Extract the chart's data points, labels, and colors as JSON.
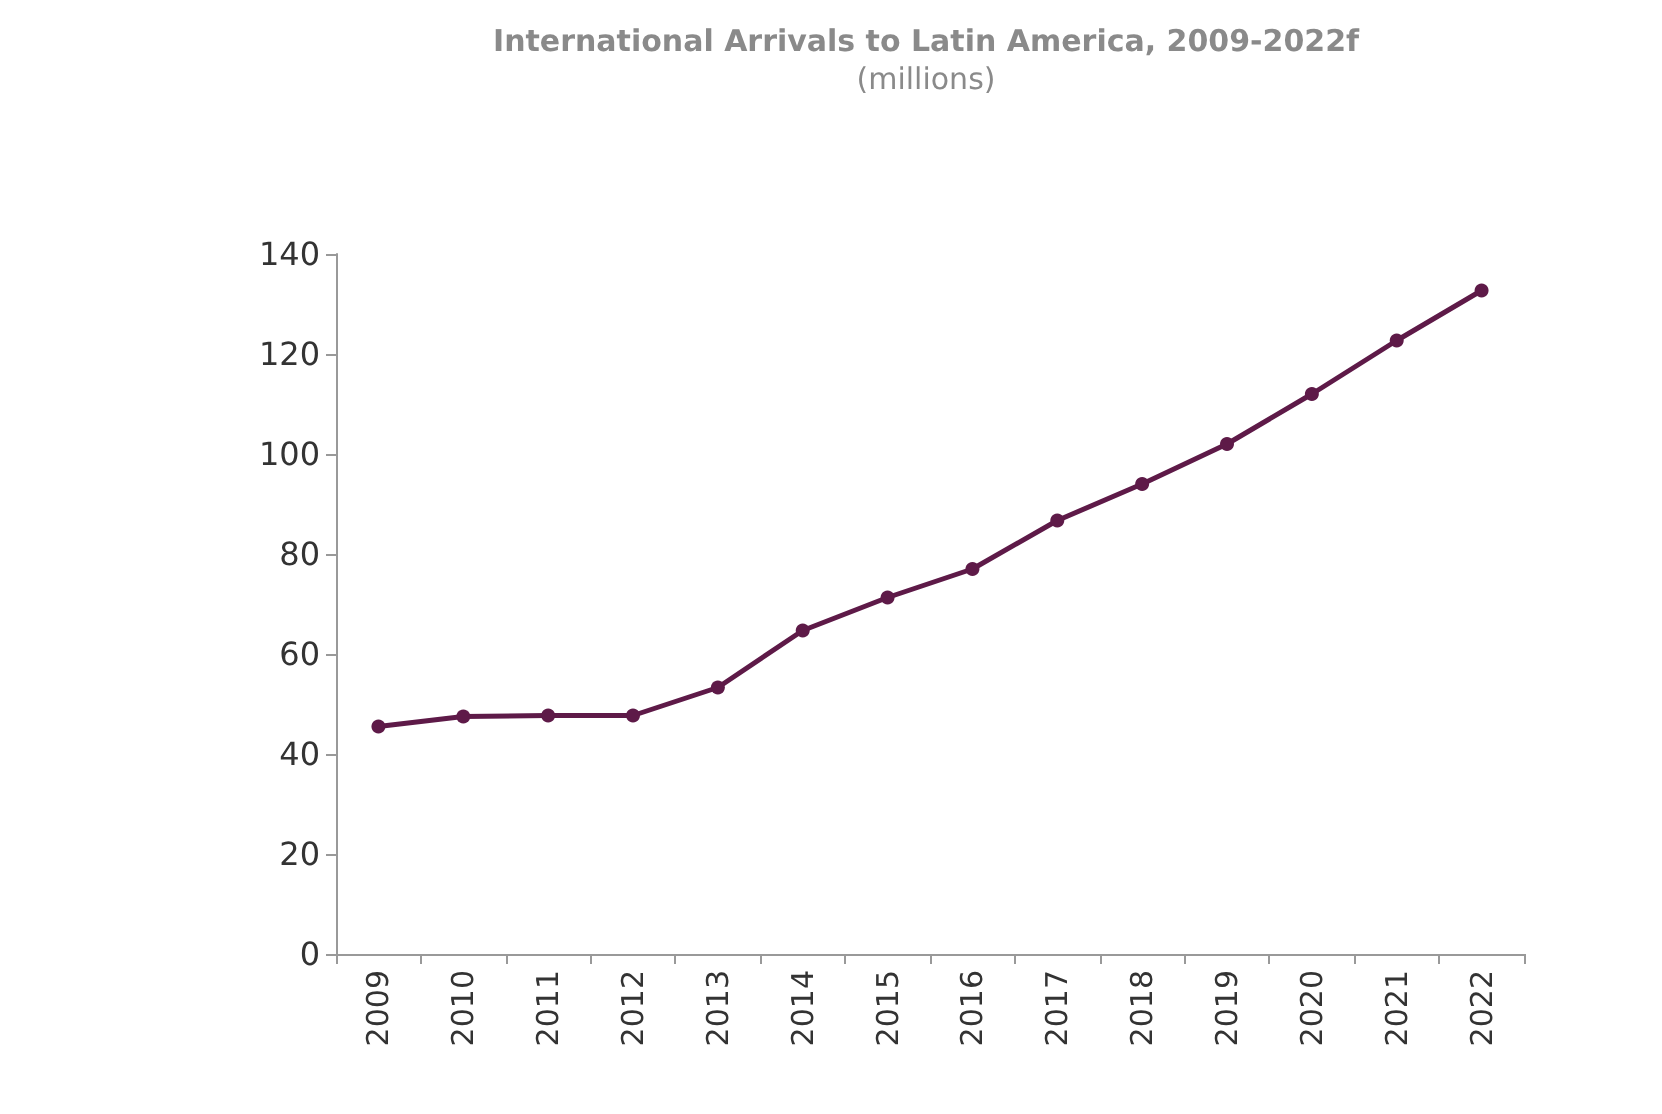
{
  "chart_data": {
    "type": "line",
    "title": "International Arrivals to Latin America, 2009-2022f",
    "subtitle": "(millions)",
    "categories": [
      "2009",
      "2010",
      "2011",
      "2012",
      "2013",
      "2014",
      "2015",
      "2016",
      "2017",
      "2018",
      "2019",
      "2020",
      "2021",
      "2022"
    ],
    "series": [
      {
        "color": "#5e1a48",
        "values": [
          45.5,
          47.5,
          47.7,
          47.7,
          53.3,
          64.7,
          71.3,
          77,
          86.7,
          94,
          102,
          112,
          122.7,
          132.7
        ]
      }
    ],
    "ylim": [
      0,
      140
    ],
    "yticks": [
      0,
      20,
      40,
      60,
      80,
      100,
      120,
      140
    ],
    "grid": false,
    "marker": "circle",
    "line_style": "solid"
  }
}
